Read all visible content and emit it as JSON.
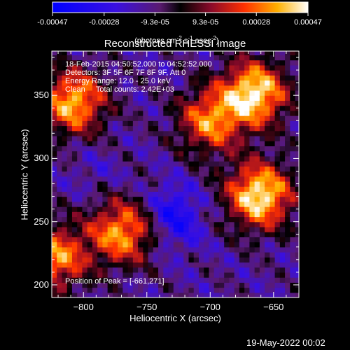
{
  "colorbar": {
    "tick_labels": [
      "-0.00047",
      "-0.00028",
      "-9.3e-05",
      "9.3e-05",
      "0.00028",
      "0.00047"
    ],
    "tick_values": [
      -0.00047,
      -0.00028,
      -9.3e-05,
      9.3e-05,
      0.00028,
      0.00047
    ],
    "range": [
      -0.00047,
      0.00047
    ],
    "unit_label": "(photons cm",
    "unit_exp1": "-2",
    "unit_mid": " s",
    "unit_exp2": "-1",
    "unit_mid2": " asec",
    "unit_exp3": "-2",
    "unit_end": ")"
  },
  "chart_data": {
    "type": "heatmap",
    "title": "Reconstructed RHESSI Image",
    "xlabel": "Heliocentric X (arcsec)",
    "ylabel": "Heliocentric Y (arcsec)",
    "xlim": [
      -825,
      -630
    ],
    "ylim": [
      190,
      385
    ],
    "x_ticks": [
      -800,
      -750,
      -700,
      -650
    ],
    "y_ticks": [
      200,
      250,
      300,
      350
    ],
    "x_tick_labels": [
      "−800",
      "−750",
      "−700",
      "−650"
    ],
    "y_tick_labels": [
      "200",
      "250",
      "300",
      "350"
    ],
    "annotations": {
      "time_range": "18-Feb-2015 04:50:52.000 to 04:52:52.000",
      "detectors": "Detectors: 3F 5F 6F 7F 8F 9F, Att 0",
      "energy": "Energy Range: 12.0 - 25.0 keV",
      "method_counts": "Clean     Total counts: 2.42E+03",
      "peak": "Position of Peak = [-661,271]"
    },
    "peak_position": [
      -661,
      271
    ],
    "bright_sources": [
      {
        "x": -661,
        "y": 271,
        "value": 0.00047
      },
      {
        "x": -665,
        "y": 352,
        "value": 0.00045
      },
      {
        "x": -808,
        "y": 345,
        "value": 0.00038
      },
      {
        "x": -770,
        "y": 242,
        "value": 0.00034
      },
      {
        "x": -700,
        "y": 330,
        "value": 0.0003
      },
      {
        "x": -822,
        "y": 222,
        "value": 0.00032
      }
    ],
    "dark_regions": [
      {
        "x": -730,
        "y": 262,
        "value": -0.0003
      },
      {
        "x": -725,
        "y": 245,
        "value": -0.00025
      },
      {
        "x": -790,
        "y": 290,
        "value": -0.00018
      }
    ]
  },
  "footer": {
    "date": "19-May-2022 00:02"
  }
}
